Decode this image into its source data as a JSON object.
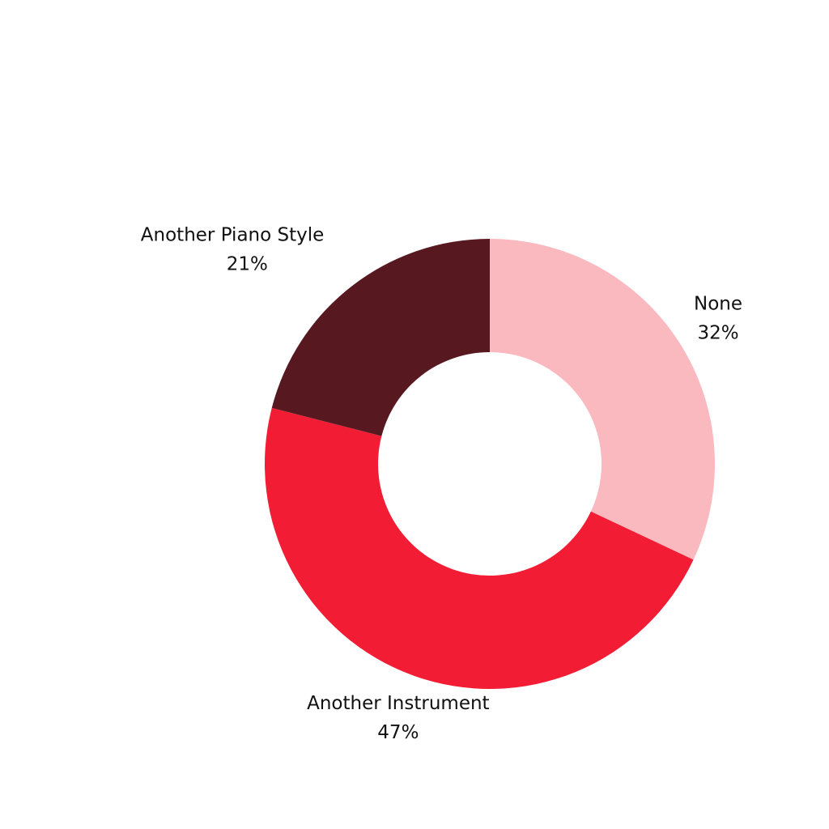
{
  "chart_data": {
    "type": "donut",
    "categories": [
      "None",
      "Another Instrument",
      "Another Piano Style"
    ],
    "values": [
      32,
      47,
      21
    ],
    "value_labels": [
      "32%",
      "47%",
      "21%"
    ],
    "colors": [
      "#f9b9be",
      "#f21d34",
      "#571820"
    ]
  }
}
